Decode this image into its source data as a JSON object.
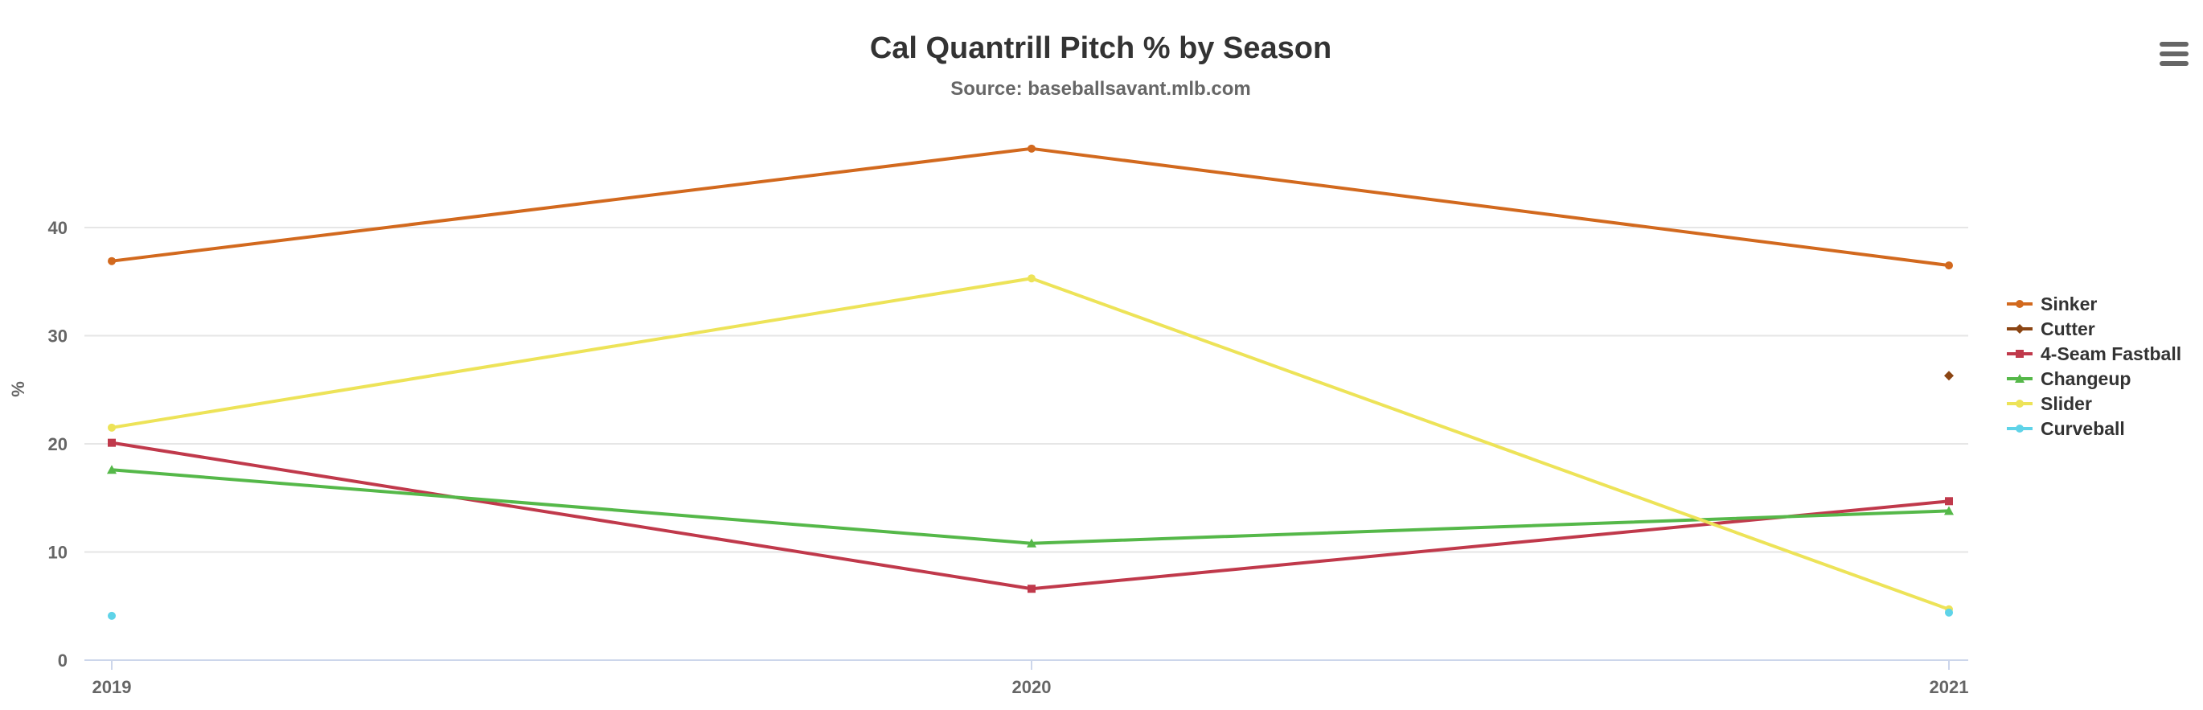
{
  "chart_data": {
    "type": "line",
    "title": "Cal Quantrill Pitch % by Season",
    "subtitle": "Source: baseballsavant.mlb.com",
    "xlabel": "",
    "ylabel": "%",
    "categories": [
      "2019",
      "2020",
      "2021"
    ],
    "ylim": [
      0,
      50
    ],
    "yticks": [
      0,
      10,
      20,
      30,
      40
    ],
    "grid": true,
    "legend_position": "right",
    "series": [
      {
        "name": "Sinker",
        "color": "#d2691e",
        "marker": "circle",
        "values": [
          36.9,
          47.3,
          36.5
        ]
      },
      {
        "name": "Cutter",
        "color": "#8b4513",
        "marker": "diamond",
        "values": [
          null,
          null,
          26.3
        ]
      },
      {
        "name": "4-Seam Fastball",
        "color": "#c0394b",
        "marker": "square",
        "values": [
          20.1,
          6.6,
          14.7
        ]
      },
      {
        "name": "Changeup",
        "color": "#55b849",
        "marker": "triangle",
        "values": [
          17.6,
          10.8,
          13.8
        ]
      },
      {
        "name": "Slider",
        "color": "#ede358",
        "marker": "circle",
        "values": [
          21.5,
          35.3,
          4.7
        ]
      },
      {
        "name": "Curveball",
        "color": "#5fd3e8",
        "marker": "circle",
        "values": [
          4.1,
          null,
          4.4
        ]
      }
    ]
  },
  "menu": {
    "icon": "hamburger-menu-icon"
  }
}
